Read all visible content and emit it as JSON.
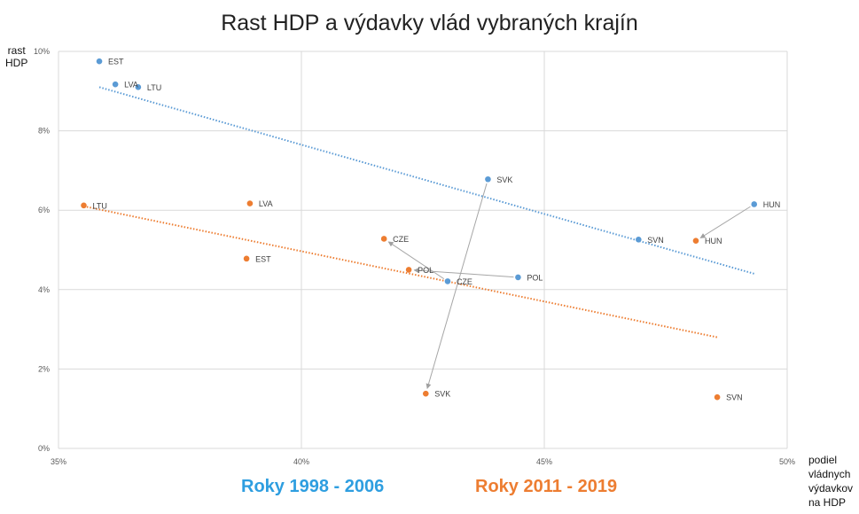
{
  "title": "Rast HDP a výdavky vlád vybraných krajín",
  "chart_data": {
    "type": "scatter",
    "title": "Rast HDP a výdavky vlád vybraných krajín",
    "ylabel_lines": [
      "rast",
      "HDP"
    ],
    "xlabel_lines": [
      "podiel",
      "vládnych",
      "výdavkov",
      "na HDP"
    ],
    "xlim": [
      0.35,
      0.5
    ],
    "ylim": [
      0,
      0.1
    ],
    "x_ticks": [
      {
        "value": 0.35,
        "label": "35%"
      },
      {
        "value": 0.4,
        "label": "40%"
      },
      {
        "value": 0.45,
        "label": "45%"
      },
      {
        "value": 0.5,
        "label": "50%"
      }
    ],
    "y_ticks": [
      {
        "value": 0.0,
        "label": "0%"
      },
      {
        "value": 0.02,
        "label": "2%"
      },
      {
        "value": 0.04,
        "label": "4%"
      },
      {
        "value": 0.06,
        "label": "6%"
      },
      {
        "value": 0.08,
        "label": "8%"
      },
      {
        "value": 0.1,
        "label": "10%"
      }
    ],
    "grid": true,
    "series": [
      {
        "name": "Roky 1998 - 2006",
        "color": "#5b9bd5",
        "legend_color": "#2e9ee0",
        "points": [
          {
            "label": "EST",
            "x": 0.3584,
            "y": 0.0975
          },
          {
            "label": "LVA",
            "x": 0.3617,
            "y": 0.0917
          },
          {
            "label": "LTU",
            "x": 0.3664,
            "y": 0.091
          },
          {
            "label": "SVK",
            "x": 0.4384,
            "y": 0.0678
          },
          {
            "label": "HUN",
            "x": 0.4932,
            "y": 0.0615
          },
          {
            "label": "SVN",
            "x": 0.4694,
            "y": 0.0526
          },
          {
            "label": "POL",
            "x": 0.4446,
            "y": 0.0431
          },
          {
            "label": "CZE",
            "x": 0.4301,
            "y": 0.0421
          }
        ],
        "trendline": {
          "x": [
            0.3584,
            0.4932
          ],
          "y": [
            0.091,
            0.044
          ]
        }
      },
      {
        "name": "Roky 2011 - 2019",
        "color": "#ed7d31",
        "legend_color": "#ed7d31",
        "points": [
          {
            "label": "LTU",
            "x": 0.3552,
            "y": 0.0612
          },
          {
            "label": "LVA",
            "x": 0.3894,
            "y": 0.0617
          },
          {
            "label": "EST",
            "x": 0.3887,
            "y": 0.0478
          },
          {
            "label": "CZE",
            "x": 0.417,
            "y": 0.0528
          },
          {
            "label": "POL",
            "x": 0.4221,
            "y": 0.045
          },
          {
            "label": "SVK",
            "x": 0.4256,
            "y": 0.0138
          },
          {
            "label": "HUN",
            "x": 0.4812,
            "y": 0.0523
          },
          {
            "label": "SVN",
            "x": 0.4856,
            "y": 0.0129
          }
        ],
        "trendline": {
          "x": [
            0.3552,
            0.4856
          ],
          "y": [
            0.061,
            0.028
          ]
        }
      }
    ],
    "arrows": [
      {
        "country": "SVK",
        "from": [
          0.4384,
          0.0678
        ],
        "to": [
          0.4256,
          0.0138
        ]
      },
      {
        "country": "HUN",
        "from": [
          0.4932,
          0.0615
        ],
        "to": [
          0.4812,
          0.0523
        ]
      },
      {
        "country": "POL",
        "from": [
          0.4446,
          0.0431
        ],
        "to": [
          0.4221,
          0.045
        ]
      },
      {
        "country": "CZE",
        "from": [
          0.4301,
          0.0421
        ],
        "to": [
          0.417,
          0.0528
        ]
      }
    ]
  }
}
